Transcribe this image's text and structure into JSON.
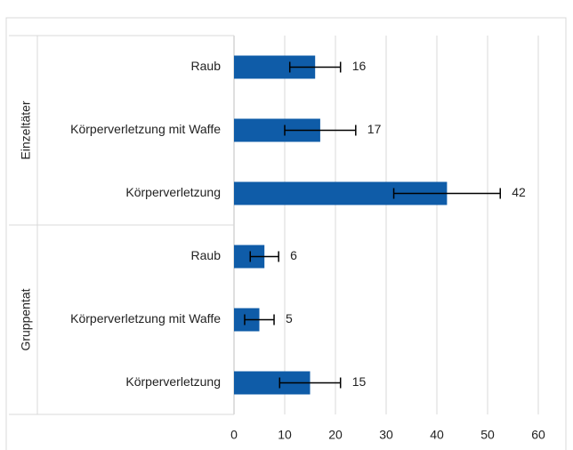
{
  "chart_data": {
    "type": "bar",
    "orientation": "horizontal",
    "color": "#0f5ca8",
    "groups": [
      {
        "name": "Einzeltäter",
        "categories": [
          "Raub",
          "Körperverletzung mit Waffe",
          "Körperverletzung"
        ],
        "values": [
          16,
          17,
          42
        ],
        "errors": [
          5,
          7,
          10.5
        ]
      },
      {
        "name": "Gruppentat",
        "categories": [
          "Raub",
          "Körperverletzung mit Waffe",
          "Körperverletzung"
        ],
        "values": [
          6,
          5,
          15
        ],
        "errors": [
          2.8,
          2.9,
          6
        ]
      }
    ],
    "xlim": [
      0,
      60
    ],
    "xticks": [
      0,
      10,
      20,
      30,
      40,
      50,
      60
    ],
    "grid": true
  }
}
